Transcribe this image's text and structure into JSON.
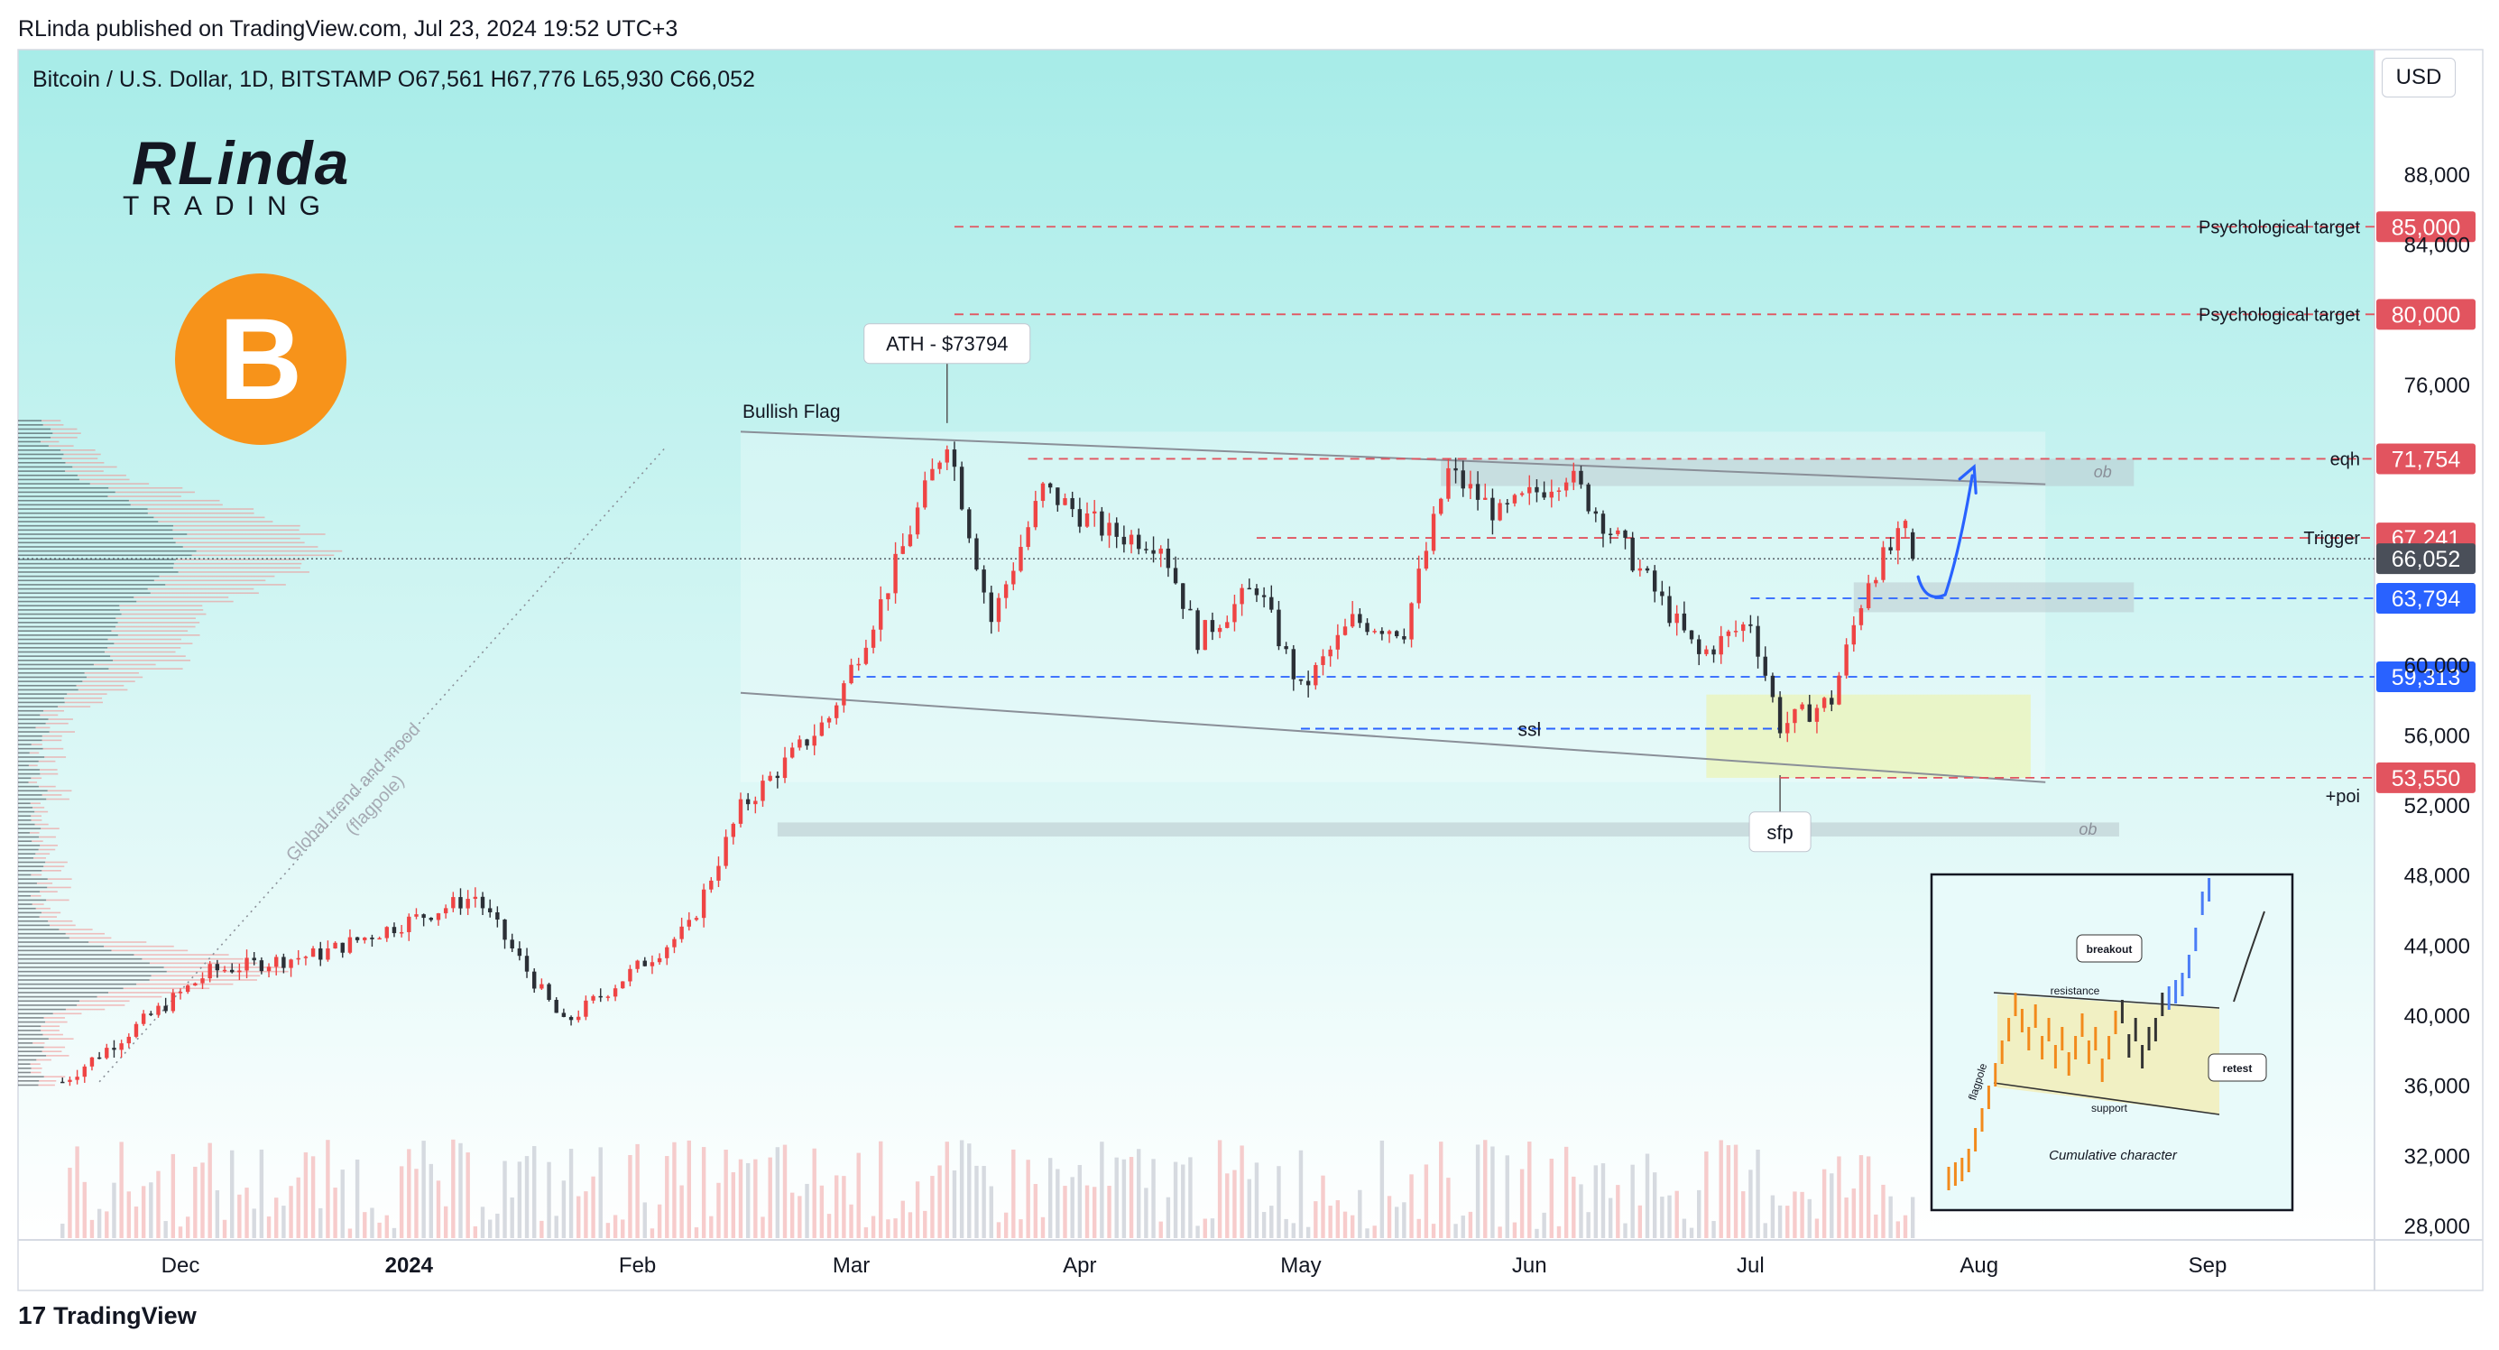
{
  "header": {
    "publish_line": "RLinda published on TradingView.com, Jul 23, 2024 19:52 UTC+3"
  },
  "symbol": {
    "line": "Bitcoin / U.S. Dollar, 1D, BITSTAMP  O67,561  H67,776  L65,930  C66,052"
  },
  "currency_button": "USD",
  "logo": {
    "line1": "RLinda",
    "line2": "TRADING"
  },
  "bitcoin_badge": "B",
  "footer": {
    "brand": "TradingView",
    "logo_glyph": "17"
  },
  "colors": {
    "up": "#ef4444",
    "down": "#2b2f36",
    "red_line": "#e2545f",
    "blue_line": "#2962ff",
    "bg_top": "#a7ece8",
    "bg_bottom": "#ffffff"
  },
  "chart_data": {
    "type": "candlestick",
    "title": "Bitcoin / U.S. Dollar, 1D, BITSTAMP",
    "ohlc_last": {
      "open": 67561,
      "high": 67776,
      "low": 65930,
      "close": 66052
    },
    "y_axis": {
      "ticks": [
        28000,
        32000,
        36000,
        40000,
        44000,
        48000,
        52000,
        56000,
        60000,
        76000,
        84000,
        88000
      ],
      "tick_labels": [
        "28,000",
        "32,000",
        "36,000",
        "40,000",
        "44,000",
        "48,000",
        "52,000",
        "56,000",
        "60,000",
        "76,000",
        "84,000",
        "88,000"
      ],
      "range": [
        27200,
        92000
      ]
    },
    "x_axis": {
      "labels": [
        "Dec",
        "2024",
        "Feb",
        "Mar",
        "Apr",
        "May",
        "Jun",
        "Jul",
        "Aug",
        "Sep"
      ],
      "dates": [
        "2023-12-01",
        "2024-01-01",
        "2024-02-01",
        "2024-03-01",
        "2024-04-01",
        "2024-05-01",
        "2024-06-01",
        "2024-07-01",
        "2024-08-01",
        "2024-09-01"
      ]
    },
    "price_levels": [
      {
        "label": "Psychological target",
        "price": 85000,
        "tag": "85,000",
        "color": "#e2545f"
      },
      {
        "label": "Psychological target",
        "price": 80000,
        "tag": "80,000",
        "color": "#e2545f"
      },
      {
        "label": "eqh",
        "price": 71754,
        "tag": "71,754",
        "color": "#e2545f"
      },
      {
        "label": "Trigger",
        "price": 67241,
        "tag": "67,241",
        "color": "#e2545f"
      },
      {
        "label": "",
        "price": 66052,
        "tag": "66,052",
        "color": "#4a4f59"
      },
      {
        "label": "",
        "price": 63794,
        "tag": "63,794",
        "color": "#2962ff"
      },
      {
        "label": "",
        "price": 59313,
        "tag": "59,313",
        "color": "#2962ff"
      },
      {
        "label": "+poi",
        "price": 53550,
        "tag": "53,550",
        "color": "#e2545f"
      }
    ],
    "annotations": {
      "ath": "ATH - $73794",
      "flag": "Bullish Flag",
      "ssl": "ssl",
      "sfp": "sfp",
      "ob": "ob",
      "trend": "Global trend and mood",
      "flagpole": "(flagpole)"
    },
    "flag_channel": {
      "upper_start": [
        "2024-02-15",
        73300
      ],
      "upper_end": [
        "2024-08-10",
        70300
      ],
      "lower_start": [
        "2024-02-15",
        58400
      ],
      "lower_end": [
        "2024-08-10",
        53300
      ]
    },
    "anchors": [
      [
        "2023-11-15",
        36200
      ],
      [
        "2023-12-05",
        42500
      ],
      [
        "2023-12-20",
        43500
      ],
      [
        "2024-01-10",
        46800
      ],
      [
        "2024-01-22",
        39500
      ],
      [
        "2024-02-08",
        45000
      ],
      [
        "2024-02-15",
        51800
      ],
      [
        "2024-02-27",
        57000
      ],
      [
        "2024-03-05",
        63500
      ],
      [
        "2024-03-14",
        73000
      ],
      [
        "2024-03-20",
        62500
      ],
      [
        "2024-03-27",
        70000
      ],
      [
        "2024-04-05",
        67500
      ],
      [
        "2024-04-12",
        67000
      ],
      [
        "2024-04-17",
        61500
      ],
      [
        "2024-04-25",
        64500
      ],
      [
        "2024-05-01",
        58500
      ],
      [
        "2024-05-08",
        62500
      ],
      [
        "2024-05-15",
        62000
      ],
      [
        "2024-05-21",
        71000
      ],
      [
        "2024-05-28",
        68500
      ],
      [
        "2024-06-06",
        71000
      ],
      [
        "2024-06-15",
        66000
      ],
      [
        "2024-06-24",
        60500
      ],
      [
        "2024-07-01",
        62500
      ],
      [
        "2024-07-05",
        56500
      ],
      [
        "2024-07-12",
        58000
      ],
      [
        "2024-07-17",
        65000
      ],
      [
        "2024-07-22",
        67600
      ],
      [
        "2024-07-23",
        66052
      ]
    ],
    "inset": {
      "labels": {
        "breakout": "breakout",
        "resistance": "resistance",
        "support": "support",
        "retest": "retest",
        "flagpole": "flagpole",
        "caption": "Cumulative character"
      }
    }
  }
}
